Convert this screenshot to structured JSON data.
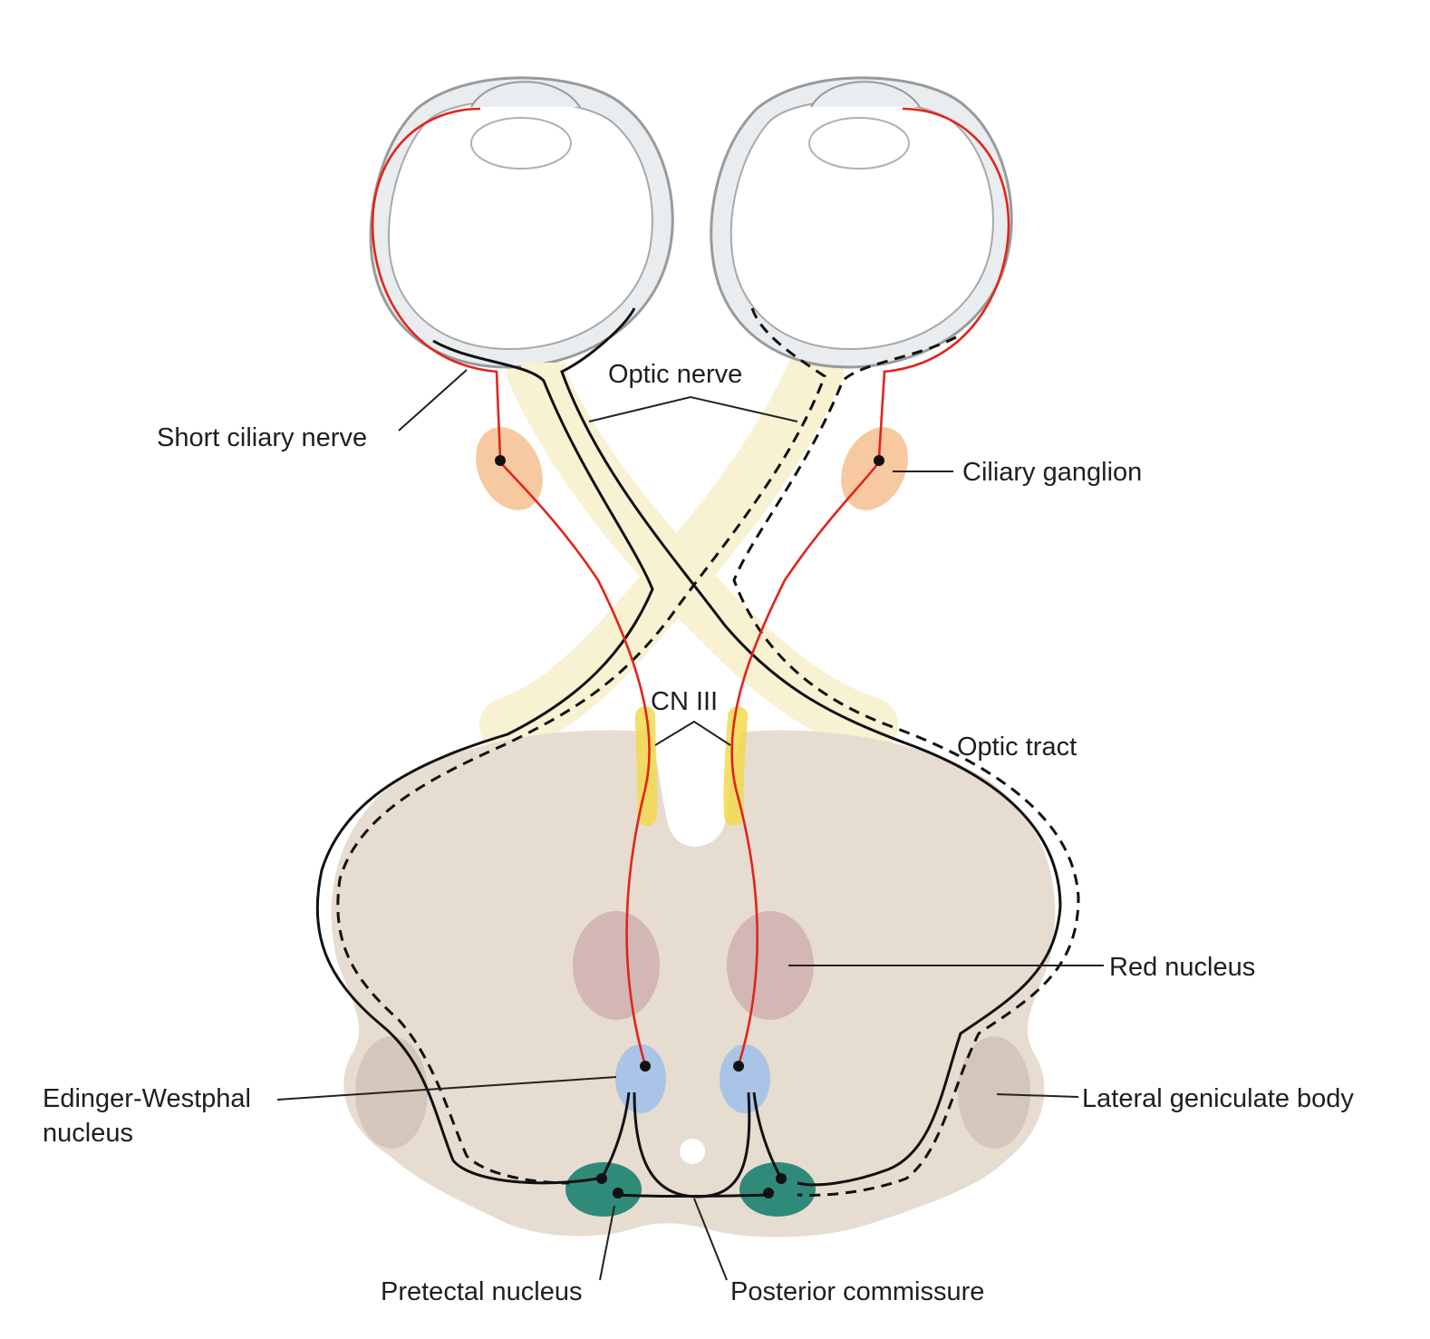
{
  "labels": {
    "optic_nerve": "Optic nerve",
    "short_ciliary_nerve": "Short ciliary nerve",
    "ciliary_ganglion": "Ciliary ganglion",
    "cn_iii": "CN III",
    "optic_tract": "Optic tract",
    "red_nucleus": "Red nucleus",
    "edinger_westphal_line1": "Edinger-Westphal",
    "edinger_westphal_line2": "nucleus",
    "lateral_geniculate_body": "Lateral geniculate body",
    "pretectal_nucleus": "Pretectal nucleus",
    "posterior_commissure": "Posterior commissure"
  },
  "colors": {
    "sclera_outline": "#9a9a9a",
    "sclera_fill": "#e9edf0",
    "optic_fiber_fill": "#f8f1d2",
    "midbrain_fill": "#e6dcd0",
    "ciliary_ganglion": "#f6c9a0",
    "red_nucleus": "#d3b7b4",
    "edinger_westphal": "#a9c4e6",
    "pretectal_nucleus": "#2f8a7a",
    "lateral_geniculate": "#d5c6bb",
    "cn_iii": "#f2d94e",
    "parasympathetic_path": "#e1251b",
    "afferent_path": "#111111"
  }
}
